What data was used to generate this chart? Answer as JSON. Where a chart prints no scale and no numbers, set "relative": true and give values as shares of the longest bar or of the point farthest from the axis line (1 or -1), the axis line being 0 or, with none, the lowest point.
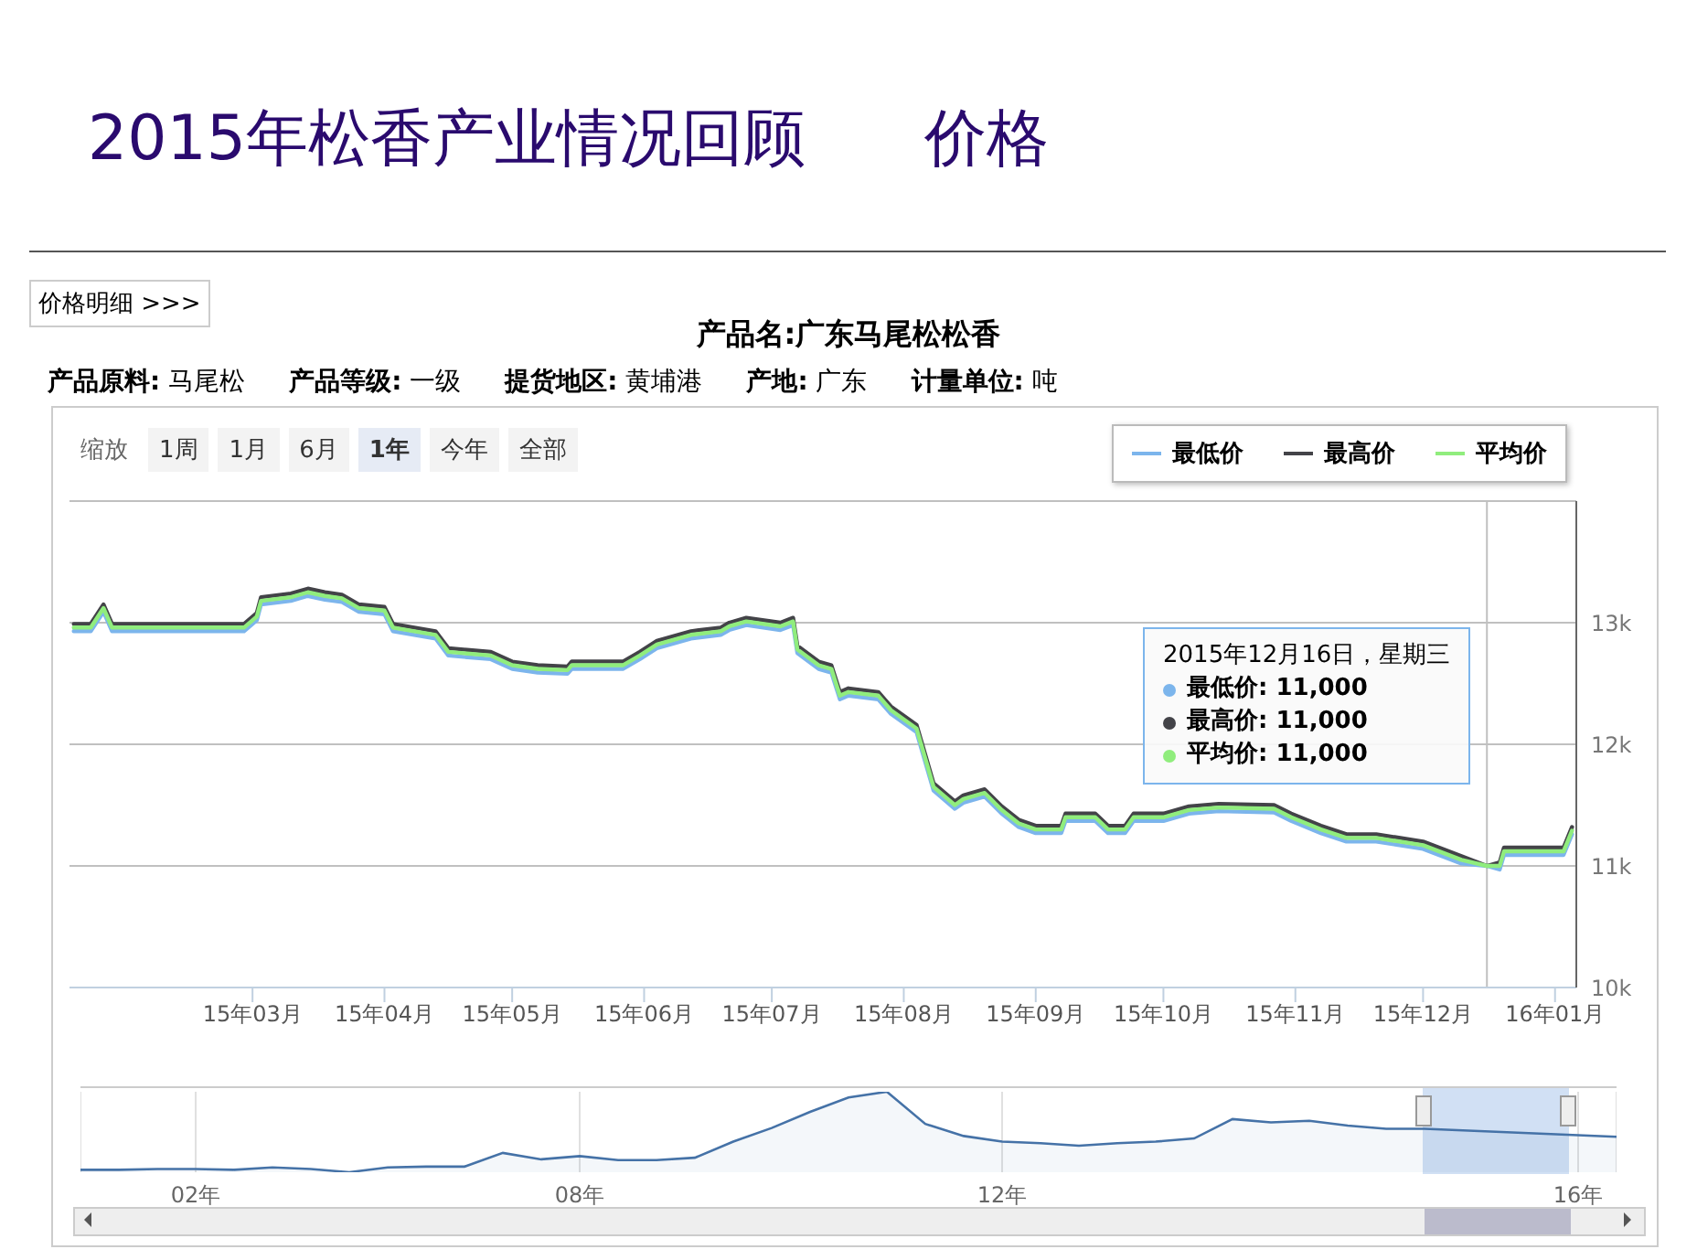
{
  "chart_data": [
    {
      "type": "line",
      "title": "2015年松香产业情况回顾      价格",
      "subtitle": "产品名:广东马尾松松香",
      "annotations": [
        "价格明细 >>>",
        "产品原料: 马尾松",
        "产品等级: 一级",
        "提货地区: 黄埔港",
        "产地: 广东",
        "计量单位: 吨",
        "缩放",
        "1周",
        "1月",
        "6月",
        "1年",
        "今年",
        "全部",
        "2015年12月16日，星期三",
        "最低价: 11,000",
        "最高价: 11,000",
        "平均价: 11,000"
      ],
      "x": [
        "2015-01-18",
        "2015-01-22",
        "2015-01-25",
        "2015-01-27",
        "2015-02-27",
        "2015-03-02",
        "2015-03-03",
        "2015-03-10",
        "2015-03-14",
        "2015-03-18",
        "2015-03-22",
        "2015-03-26",
        "2015-04-01",
        "2015-04-03",
        "2015-04-13",
        "2015-04-16",
        "2015-04-26",
        "2015-05-01",
        "2015-05-07",
        "2015-05-14",
        "2015-05-15",
        "2015-05-27",
        "2015-05-31",
        "2015-06-04",
        "2015-06-12",
        "2015-06-19",
        "2015-06-21",
        "2015-06-25",
        "2015-07-03",
        "2015-07-06",
        "2015-07-07",
        "2015-07-12",
        "2015-07-15",
        "2015-07-17",
        "2015-07-19",
        "2015-07-26",
        "2015-07-29",
        "2015-08-04",
        "2015-08-08",
        "2015-08-13",
        "2015-08-15",
        "2015-08-20",
        "2015-08-24",
        "2015-08-28",
        "2015-09-01",
        "2015-09-07",
        "2015-09-08",
        "2015-09-15",
        "2015-09-18",
        "2015-09-22",
        "2015-09-24",
        "2015-10-01",
        "2015-10-07",
        "2015-10-14",
        "2015-10-27",
        "2015-10-31",
        "2015-11-07",
        "2015-11-13",
        "2015-11-20",
        "2015-12-01",
        "2015-12-10",
        "2015-12-16",
        "2015-12-19",
        "2015-12-20",
        "2016-01-03",
        "2016-01-05"
      ],
      "series": [
        {
          "name": "最低价",
          "color": "#7cb5ec",
          "values": [
            12930,
            12930,
            13090,
            12930,
            12930,
            13020,
            13150,
            13180,
            13220,
            13190,
            13170,
            13090,
            13070,
            12930,
            12870,
            12730,
            12700,
            12620,
            12590,
            12580,
            12620,
            12620,
            12700,
            12790,
            12870,
            12900,
            12940,
            12980,
            12940,
            12980,
            12750,
            12620,
            12590,
            12370,
            12400,
            12370,
            12250,
            12100,
            11620,
            11470,
            11520,
            11570,
            11430,
            11320,
            11270,
            11270,
            11370,
            11370,
            11270,
            11270,
            11370,
            11370,
            11430,
            11450,
            11440,
            11370,
            11270,
            11200,
            11200,
            11140,
            11020,
            11000,
            10970,
            11090,
            11090,
            11260
          ]
        },
        {
          "name": "最高价",
          "color": "#434348",
          "values": [
            12990,
            12990,
            13150,
            12990,
            12990,
            13080,
            13210,
            13240,
            13280,
            13250,
            13230,
            13150,
            13130,
            12990,
            12930,
            12790,
            12760,
            12680,
            12650,
            12640,
            12680,
            12680,
            12760,
            12850,
            12930,
            12960,
            13000,
            13040,
            13000,
            13040,
            12810,
            12680,
            12650,
            12430,
            12460,
            12430,
            12310,
            12160,
            11680,
            11530,
            11580,
            11630,
            11490,
            11380,
            11330,
            11330,
            11430,
            11430,
            11330,
            11330,
            11430,
            11430,
            11490,
            11510,
            11500,
            11430,
            11330,
            11260,
            11260,
            11200,
            11080,
            11000,
            11030,
            11150,
            11150,
            11320
          ]
        },
        {
          "name": "平均价",
          "color": "#90ed7d",
          "values": [
            12960,
            12960,
            13120,
            12960,
            12960,
            13050,
            13180,
            13210,
            13250,
            13220,
            13200,
            13120,
            13100,
            12960,
            12900,
            12760,
            12730,
            12650,
            12620,
            12610,
            12650,
            12650,
            12730,
            12820,
            12900,
            12930,
            12970,
            13010,
            12970,
            13010,
            12780,
            12650,
            12620,
            12400,
            12430,
            12400,
            12280,
            12130,
            11650,
            11500,
            11550,
            11600,
            11460,
            11350,
            11300,
            11300,
            11400,
            11400,
            11300,
            11300,
            11400,
            11400,
            11460,
            11480,
            11470,
            11400,
            11300,
            11230,
            11230,
            11170,
            11050,
            11000,
            11000,
            11120,
            11120,
            11290
          ]
        }
      ],
      "xlim": [
        "2015-01-17",
        "2016-01-06"
      ],
      "xticks": [
        {
          "value": "2015-03-01",
          "label": "15年03月"
        },
        {
          "value": "2015-04-01",
          "label": "15年04月"
        },
        {
          "value": "2015-05-01",
          "label": "15年05月"
        },
        {
          "value": "2015-06-01",
          "label": "15年06月"
        },
        {
          "value": "2015-07-01",
          "label": "15年07月"
        },
        {
          "value": "2015-08-01",
          "label": "15年08月"
        },
        {
          "value": "2015-09-01",
          "label": "15年09月"
        },
        {
          "value": "2015-10-01",
          "label": "15年10月"
        },
        {
          "value": "2015-11-01",
          "label": "15年11月"
        },
        {
          "value": "2015-12-01",
          "label": "15年12月"
        },
        {
          "value": "2016-01-01",
          "label": "16年01月"
        }
      ],
      "ylim": [
        10000,
        14000
      ],
      "yticks": [
        {
          "value": 10000,
          "label": "10k"
        },
        {
          "value": 11000,
          "label": "11k"
        },
        {
          "value": 12000,
          "label": "12k"
        },
        {
          "value": 13000,
          "label": "13k"
        },
        {
          "value": 14000,
          "label": null
        }
      ],
      "ref_lines": [
        {
          "axis": "x",
          "value": "2015-12-16",
          "color": "#c0c0c0"
        }
      ],
      "grid": "y",
      "legend": "top right"
    },
    {
      "type": "area",
      "relative": true,
      "color": "#4572a7",
      "grid": "x",
      "tick_labels": "x",
      "categories": [
        null,
        null,
        null,
        "02年",
        null,
        null,
        null,
        null,
        null,
        null,
        null,
        null,
        null,
        "08年",
        null,
        null,
        null,
        null,
        null,
        null,
        null,
        null,
        null,
        null,
        "12年",
        null,
        null,
        null,
        null,
        null,
        null,
        null,
        null,
        null,
        null,
        null,
        null,
        null,
        null,
        "16年",
        null
      ],
      "values": [
        0.03,
        0.03,
        0.04,
        0.04,
        0.03,
        0.06,
        0.04,
        0,
        0.06,
        0.07,
        0.07,
        0.24,
        0.16,
        0.2,
        0.15,
        0.15,
        0.18,
        0.38,
        0.55,
        0.75,
        0.93,
        1,
        0.6,
        0.45,
        0.38,
        0.36,
        0.33,
        0.36,
        0.38,
        0.42,
        0.66,
        0.62,
        0.64,
        0.58,
        0.54,
        0.54,
        0.52,
        0.5,
        0.48,
        0.46,
        0.44
      ]
    }
  ]
}
